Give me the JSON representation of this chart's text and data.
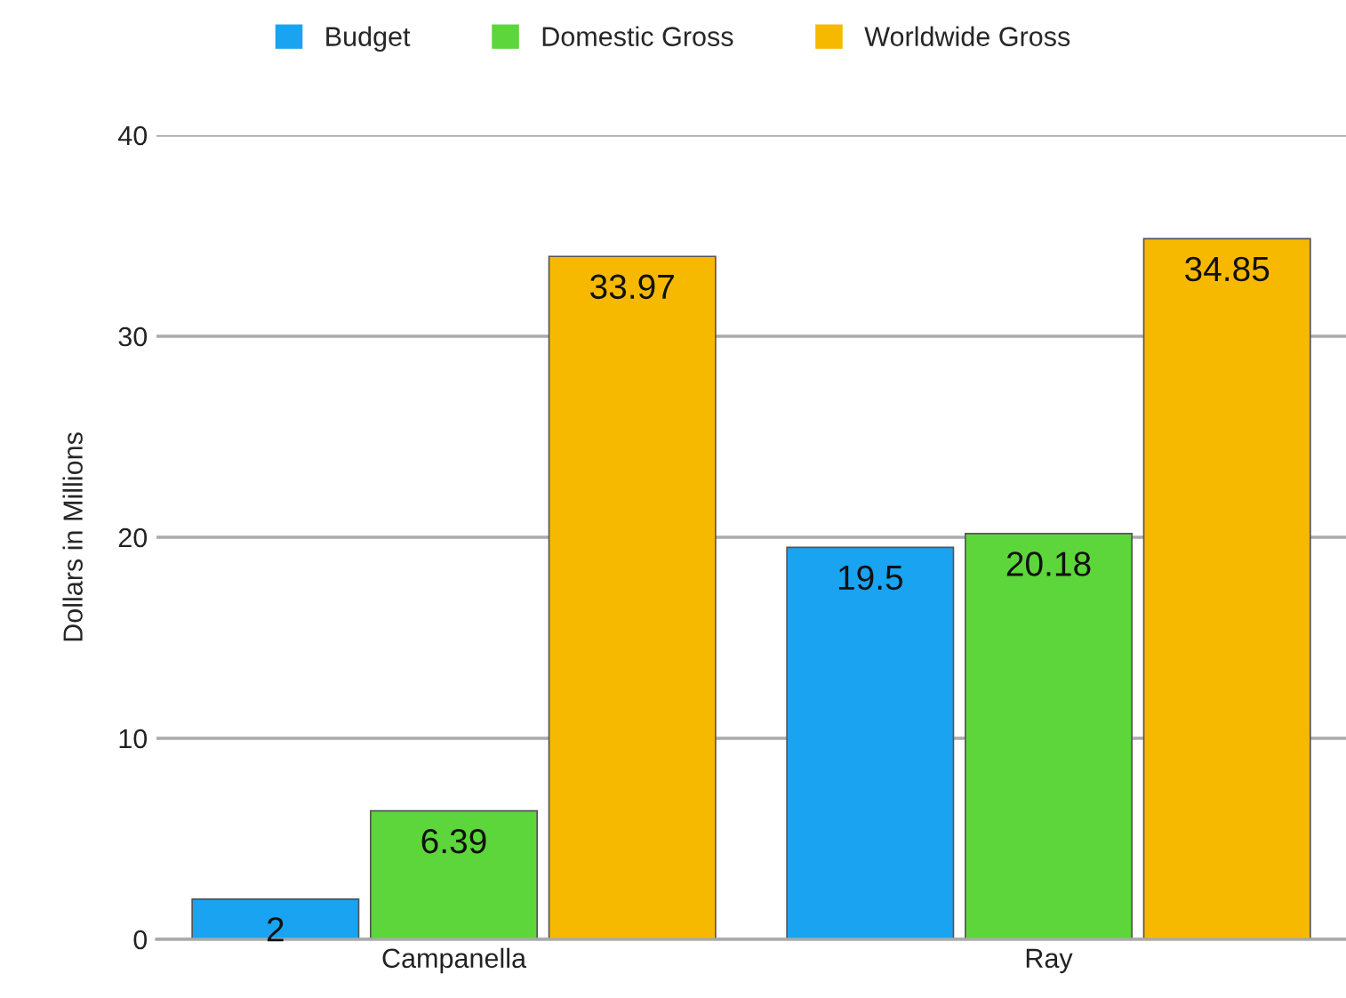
{
  "chart_data": {
    "type": "bar",
    "categories": [
      "Campanella",
      "Ray"
    ],
    "ylabel": "Dollars in Millions",
    "series": [
      {
        "name": "Budget",
        "color": "#1aa3f0",
        "values": [
          2,
          19.5
        ]
      },
      {
        "name": "Domestic Gross",
        "color": "#5cd63a",
        "values": [
          6.39,
          20.18
        ]
      },
      {
        "name": "Worldwide Gross",
        "color": "#f7b900",
        "values": [
          33.97,
          34.85
        ]
      }
    ],
    "ylim": [
      0,
      40
    ],
    "yticks": [
      0,
      10,
      20,
      30,
      40
    ],
    "grid": "y",
    "legend": "top",
    "data_labels": true
  }
}
